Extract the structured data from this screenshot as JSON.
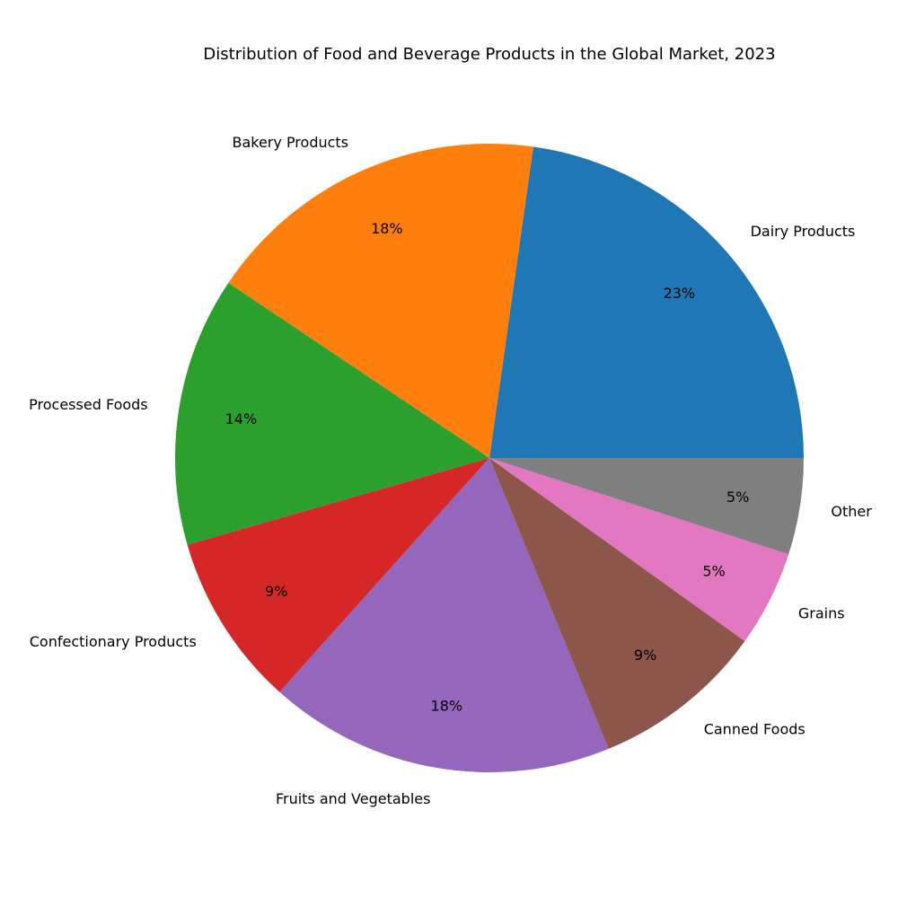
{
  "chart_data": {
    "type": "pie",
    "title": "Distribution of Food and Beverage Products in the Global Market, 2023",
    "slices": [
      {
        "label": "Dairy Products",
        "value": 23,
        "pct_label": "23%",
        "color": "#1f77b4"
      },
      {
        "label": "Bakery Products",
        "value": 18,
        "pct_label": "18%",
        "color": "#ff7f0e"
      },
      {
        "label": "Processed Foods",
        "value": 14,
        "pct_label": "14%",
        "color": "#2ca02c"
      },
      {
        "label": "Confectionary Products",
        "value": 9,
        "pct_label": "9%",
        "color": "#d62728"
      },
      {
        "label": "Fruits and Vegetables",
        "value": 18,
        "pct_label": "18%",
        "color": "#9467bd"
      },
      {
        "label": "Canned Foods",
        "value": 9,
        "pct_label": "9%",
        "color": "#8c564b"
      },
      {
        "label": "Grains",
        "value": 5,
        "pct_label": "5%",
        "color": "#e377c2"
      },
      {
        "label": "Other",
        "value": 5,
        "pct_label": "5%",
        "color": "#7f7f7f"
      }
    ],
    "start_angle_deg": 0,
    "direction": "counterclockwise"
  }
}
